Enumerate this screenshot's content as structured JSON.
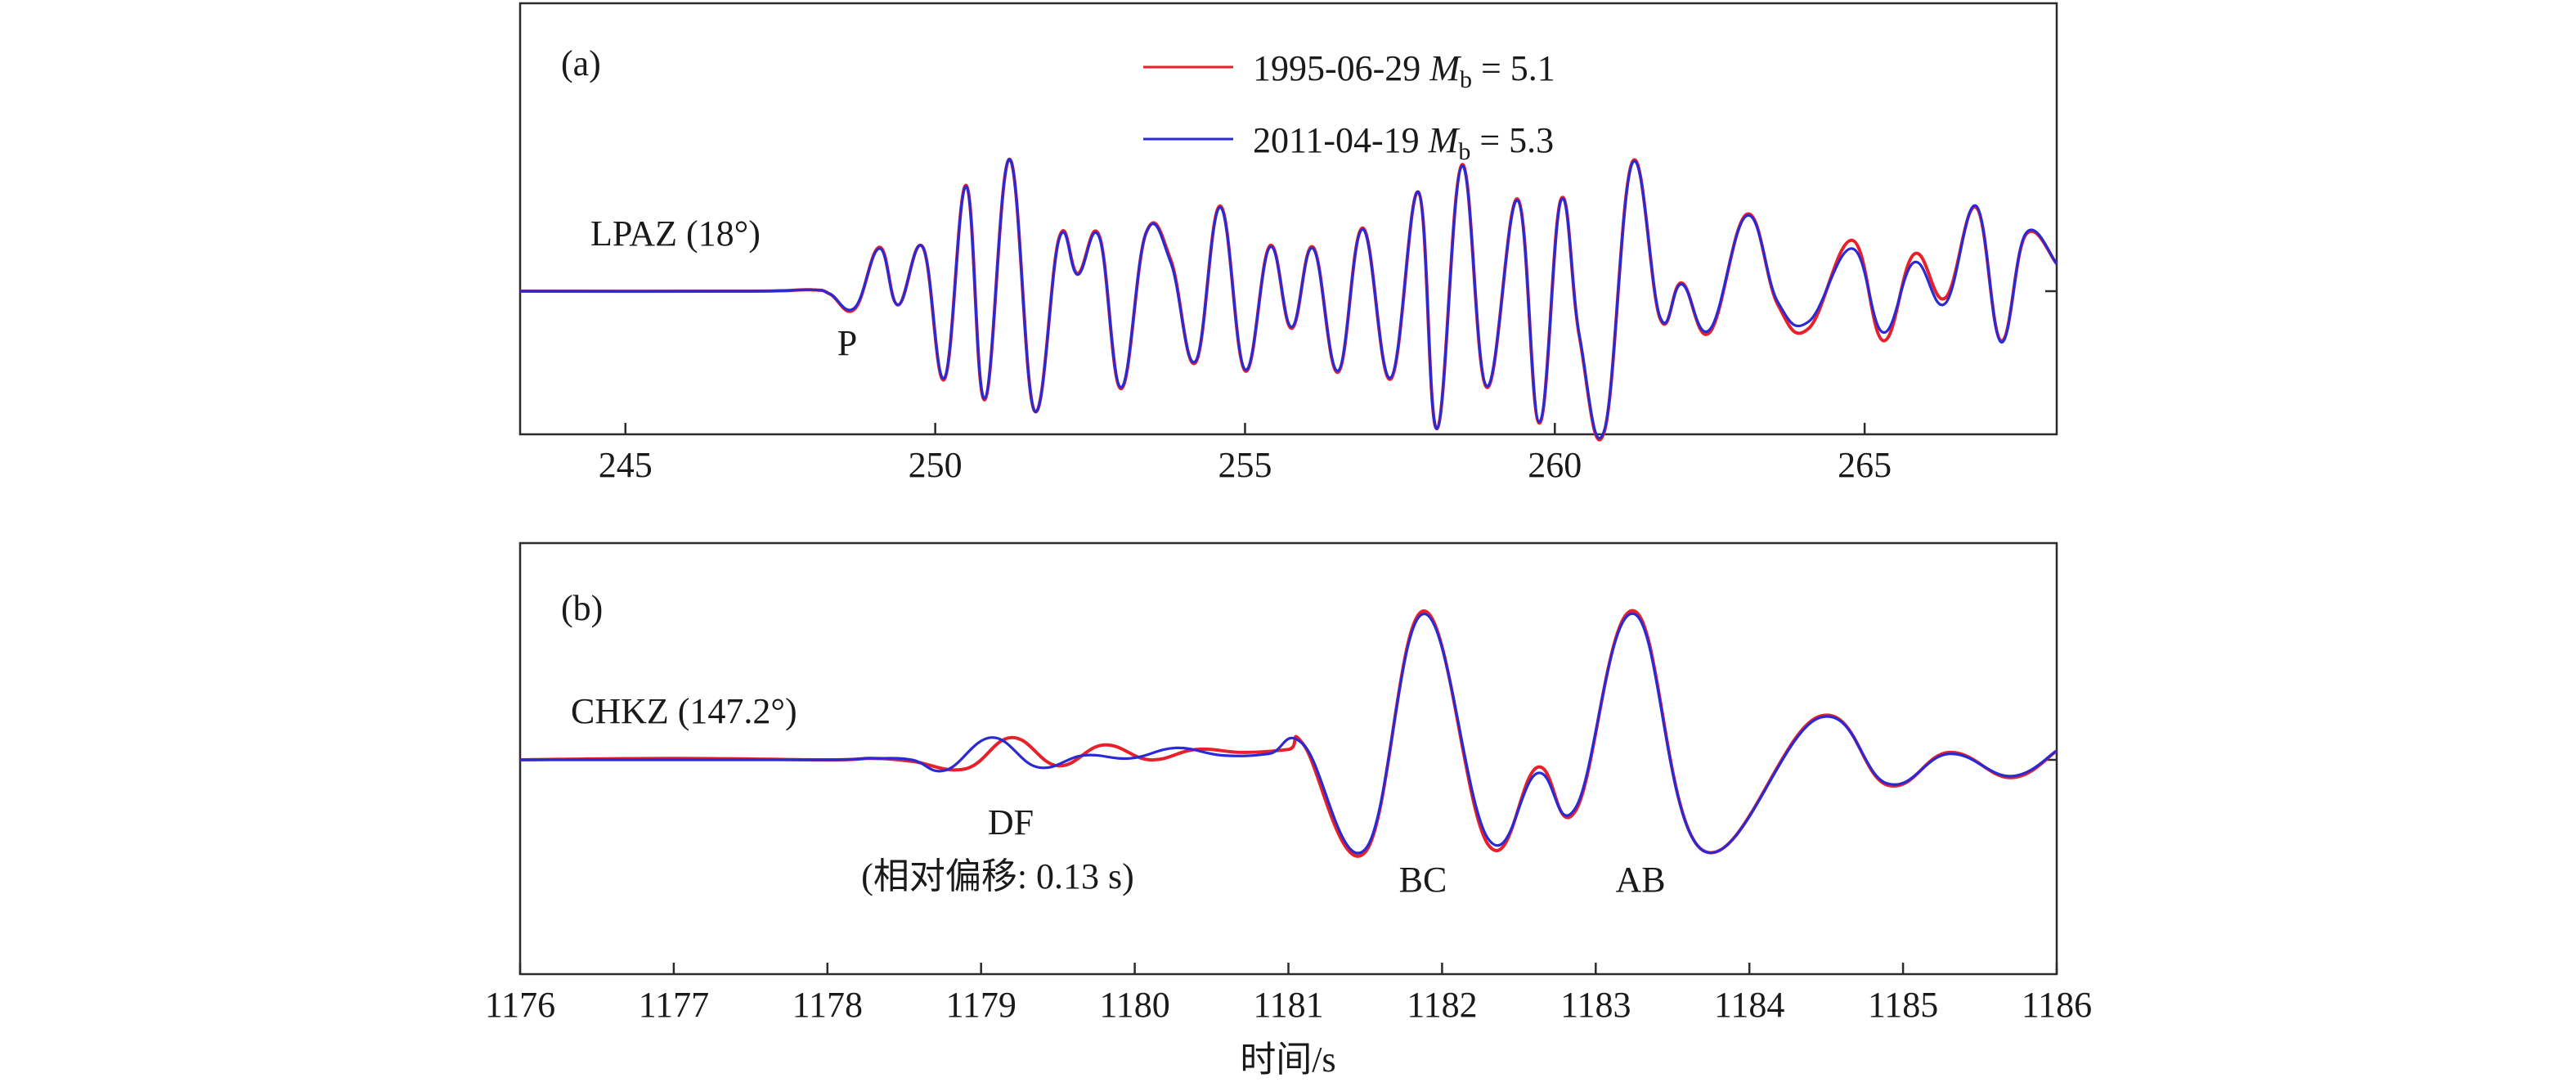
{
  "legend": {
    "items": [
      {
        "date": "1995-06-29",
        "mag_symbol": "M",
        "mag_sub": "b",
        "mag_value": "= 5.1",
        "color": "#e8202a"
      },
      {
        "date": "2011-04-19",
        "mag_symbol": "M",
        "mag_sub": "b",
        "mag_value": "= 5.3",
        "color": "#2a2ad4"
      }
    ]
  },
  "xlabel": "时间/s",
  "chart_data": [
    {
      "type": "line",
      "panel_label": "(a)",
      "station": "LPAZ (18°)",
      "xlim": [
        243.3,
        268.1
      ],
      "xticks": [
        245,
        250,
        255,
        260,
        265
      ],
      "grid": false,
      "legend_placement": "top-center",
      "annotations": [
        {
          "text": "P",
          "x": 248.5
        }
      ],
      "series": [
        {
          "name": "1995-06-29 Mb = 5.1",
          "color": "#e8202a",
          "x": [
            243.3,
            247.0,
            248.0,
            248.3,
            248.7,
            249.1,
            249.4,
            249.8,
            250.15,
            250.5,
            250.8,
            251.2,
            251.6,
            252.0,
            252.3,
            252.65,
            253.0,
            253.4,
            253.8,
            254.2,
            254.6,
            255.0,
            255.4,
            255.75,
            256.1,
            256.5,
            256.9,
            257.35,
            257.8,
            258.1,
            258.5,
            258.9,
            259.4,
            259.75,
            260.1,
            260.4,
            260.8,
            261.25,
            261.7,
            262.05,
            262.5,
            263.1,
            263.6,
            264.1,
            264.8,
            265.3,
            265.8,
            266.3,
            266.8,
            267.2,
            267.6,
            268.1
          ],
          "y": [
            0,
            0,
            0.01,
            -0.02,
            -0.13,
            0.32,
            -0.1,
            0.32,
            -0.64,
            0.77,
            -0.79,
            0.96,
            -0.87,
            0.39,
            0.13,
            0.4,
            -0.71,
            0.42,
            0.23,
            -0.52,
            0.62,
            -0.58,
            0.33,
            -0.27,
            0.32,
            -0.59,
            0.46,
            -0.64,
            0.72,
            -1.0,
            0.92,
            -0.7,
            0.67,
            -0.96,
            0.67,
            -0.34,
            -1.02,
            0.94,
            -0.2,
            0.06,
            -0.3,
            0.56,
            -0.1,
            -0.27,
            0.37,
            -0.36,
            0.27,
            -0.05,
            0.61,
            -0.36,
            0.41,
            0.2
          ]
        },
        {
          "name": "2011-04-19 Mb = 5.3",
          "color": "#2a2ad4",
          "x": [
            243.3,
            247.0,
            248.0,
            248.3,
            248.7,
            249.1,
            249.4,
            249.8,
            250.15,
            250.5,
            250.8,
            251.2,
            251.6,
            252.0,
            252.3,
            252.65,
            253.0,
            253.4,
            253.8,
            254.2,
            254.6,
            255.0,
            255.4,
            255.75,
            256.1,
            256.5,
            256.9,
            257.35,
            257.8,
            258.1,
            258.5,
            258.9,
            259.4,
            259.75,
            260.1,
            260.4,
            260.8,
            261.25,
            261.7,
            262.05,
            262.5,
            263.1,
            263.6,
            264.1,
            264.8,
            265.3,
            265.8,
            266.3,
            266.8,
            267.2,
            267.6,
            268.1
          ],
          "y": [
            0,
            0,
            0.01,
            -0.02,
            -0.12,
            0.31,
            -0.1,
            0.32,
            -0.63,
            0.76,
            -0.78,
            0.96,
            -0.87,
            0.38,
            0.12,
            0.39,
            -0.7,
            0.42,
            0.21,
            -0.51,
            0.61,
            -0.57,
            0.32,
            -0.26,
            0.31,
            -0.58,
            0.45,
            -0.63,
            0.72,
            -1.0,
            0.91,
            -0.69,
            0.66,
            -0.95,
            0.66,
            -0.33,
            -1.01,
            0.93,
            -0.19,
            0.05,
            -0.28,
            0.55,
            -0.08,
            -0.22,
            0.31,
            -0.3,
            0.21,
            -0.09,
            0.62,
            -0.37,
            0.42,
            0.2
          ]
        }
      ]
    },
    {
      "type": "line",
      "panel_label": "(b)",
      "station": "CHKZ (147.2°)",
      "xlim": [
        1176,
        1186
      ],
      "xticks": [
        1176,
        1177,
        1178,
        1179,
        1180,
        1181,
        1182,
        1183,
        1184,
        1185,
        1186
      ],
      "grid": false,
      "annotations": [
        {
          "text": "DF",
          "x": 1179.0
        },
        {
          "text": "(相对偏移: 0.13 s)",
          "x": 1178.9
        },
        {
          "text": "BC",
          "x": 1181.7
        },
        {
          "text": "AB",
          "x": 1183.3
        }
      ],
      "series": [
        {
          "name": "1995-06-29 Mb = 5.1",
          "color": "#e8202a",
          "x": [
            1176,
            1177,
            1178,
            1178.3,
            1178.55,
            1178.9,
            1179.2,
            1179.5,
            1179.8,
            1180.1,
            1180.4,
            1180.7,
            1181.0,
            1181.1,
            1181.5,
            1181.88,
            1182.3,
            1182.62,
            1182.87,
            1183.25,
            1183.7,
            1184.45,
            1184.9,
            1185.3,
            1185.7,
            1186
          ],
          "y": [
            0,
            0.01,
            0,
            0.01,
            -0.01,
            -0.06,
            0.15,
            -0.04,
            0.1,
            0.0,
            0.07,
            0.05,
            0.07,
            0.1,
            -0.62,
            1.0,
            -0.57,
            -0.05,
            -0.34,
            1.0,
            -0.61,
            0.29,
            -0.17,
            0.05,
            -0.12,
            0.06
          ]
        },
        {
          "name": "2011-04-19 Mb = 5.3",
          "color": "#2a2ad4",
          "x": [
            1176,
            1177,
            1178,
            1178.3,
            1178.55,
            1178.77,
            1179.07,
            1179.37,
            1179.67,
            1179.97,
            1180.27,
            1180.57,
            1180.87,
            1181.1,
            1181.5,
            1181.88,
            1182.3,
            1182.62,
            1182.87,
            1183.25,
            1183.7,
            1184.45,
            1184.9,
            1185.3,
            1185.7,
            1186
          ],
          "y": [
            0,
            0,
            0,
            0.01,
            0.0,
            -0.07,
            0.15,
            -0.05,
            0.03,
            0.01,
            0.08,
            0.03,
            0.04,
            0.1,
            -0.6,
            0.98,
            -0.53,
            -0.09,
            -0.32,
            0.98,
            -0.61,
            0.28,
            -0.16,
            0.04,
            -0.11,
            0.06
          ]
        }
      ]
    }
  ]
}
